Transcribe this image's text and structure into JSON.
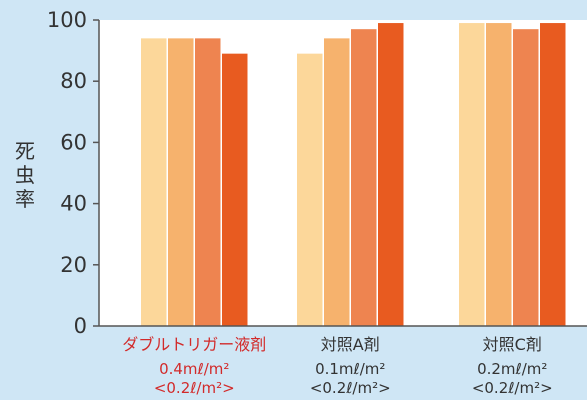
{
  "chart_data": {
    "type": "bar",
    "title": "",
    "xlabel": "",
    "ylabel": "死虫率",
    "ylim": [
      0,
      100
    ],
    "yticks": [
      0,
      20,
      40,
      60,
      80,
      100
    ],
    "grid": false,
    "categories": [
      {
        "name": "ダブルトリガー液剤",
        "dose": "0.4mℓ/m²",
        "dose2": "<0.2ℓ/m²>",
        "highlight": true
      },
      {
        "name": "対照A剤",
        "dose": "0.1mℓ/m²",
        "dose2": "<0.2ℓ/m²>",
        "highlight": false
      },
      {
        "name": "対照C剤",
        "dose": "0.2mℓ/m²",
        "dose2": "<0.2ℓ/m²>",
        "highlight": false
      }
    ],
    "series": [
      {
        "values": [
          94,
          89,
          99
        ]
      },
      {
        "values": [
          94,
          94,
          99
        ]
      },
      {
        "values": [
          94,
          97,
          97
        ]
      },
      {
        "values": [
          89,
          99,
          99
        ]
      }
    ],
    "colors": {
      "series": [
        "#fcd79a",
        "#f6b26d",
        "#ee8450",
        "#e85b20"
      ],
      "plot_background": "#ffffff",
      "page_background": "#cfe6f5",
      "highlight_text": "#d22a2a",
      "text": "#333333",
      "axis": "#555555"
    }
  }
}
